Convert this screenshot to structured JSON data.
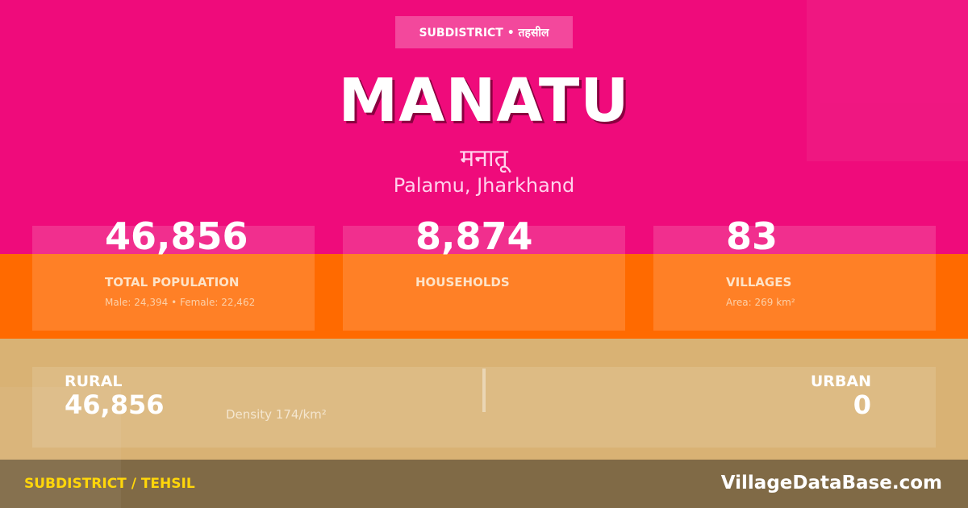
{
  "header": {
    "badge": "SUBDISTRICT • तहसील",
    "title": "MANATU",
    "title_hindi": "मनातू",
    "location": "Palamu, Jharkhand"
  },
  "stats": [
    {
      "value": "46,856",
      "label": "TOTAL POPULATION",
      "sub": "Male: 24,394 • Female: 22,462"
    },
    {
      "value": "8,874",
      "label": "HOUSEHOLDS",
      "sub": ""
    },
    {
      "value": "83",
      "label": "VILLAGES",
      "sub": "Area: 269 km²"
    }
  ],
  "split": {
    "rural_label": "RURAL",
    "rural_value": "46,856",
    "density": "Density 174/km²",
    "urban_label": "URBAN",
    "urban_value": "0"
  },
  "footer": {
    "left": "SUBDISTRICT / TEHSIL",
    "right": "VillageDataBase.com"
  },
  "colors": {
    "pink": "#ef0b7b",
    "orange": "#ff6a00",
    "tan": "#d9b274",
    "brown": "#806a46",
    "accent_yellow": "#ffd60a"
  }
}
